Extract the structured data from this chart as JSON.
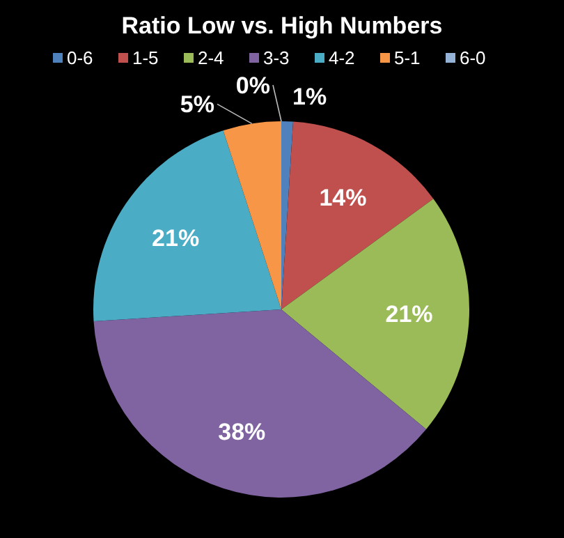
{
  "chart_data": {
    "type": "pie",
    "title": "Ratio Low vs. High Numbers",
    "categories": [
      "0-6",
      "1-5",
      "2-4",
      "3-3",
      "4-2",
      "5-1",
      "6-0"
    ],
    "values": [
      1,
      14,
      21,
      38,
      21,
      5,
      0
    ],
    "value_labels": [
      "1%",
      "14%",
      "21%",
      "38%",
      "21%",
      "5%",
      "0%"
    ],
    "colors": [
      "#4f81bd",
      "#c0504d",
      "#9bbb59",
      "#8064a2",
      "#4bacc6",
      "#f79646",
      "#95b3d7"
    ],
    "legend": "top"
  }
}
